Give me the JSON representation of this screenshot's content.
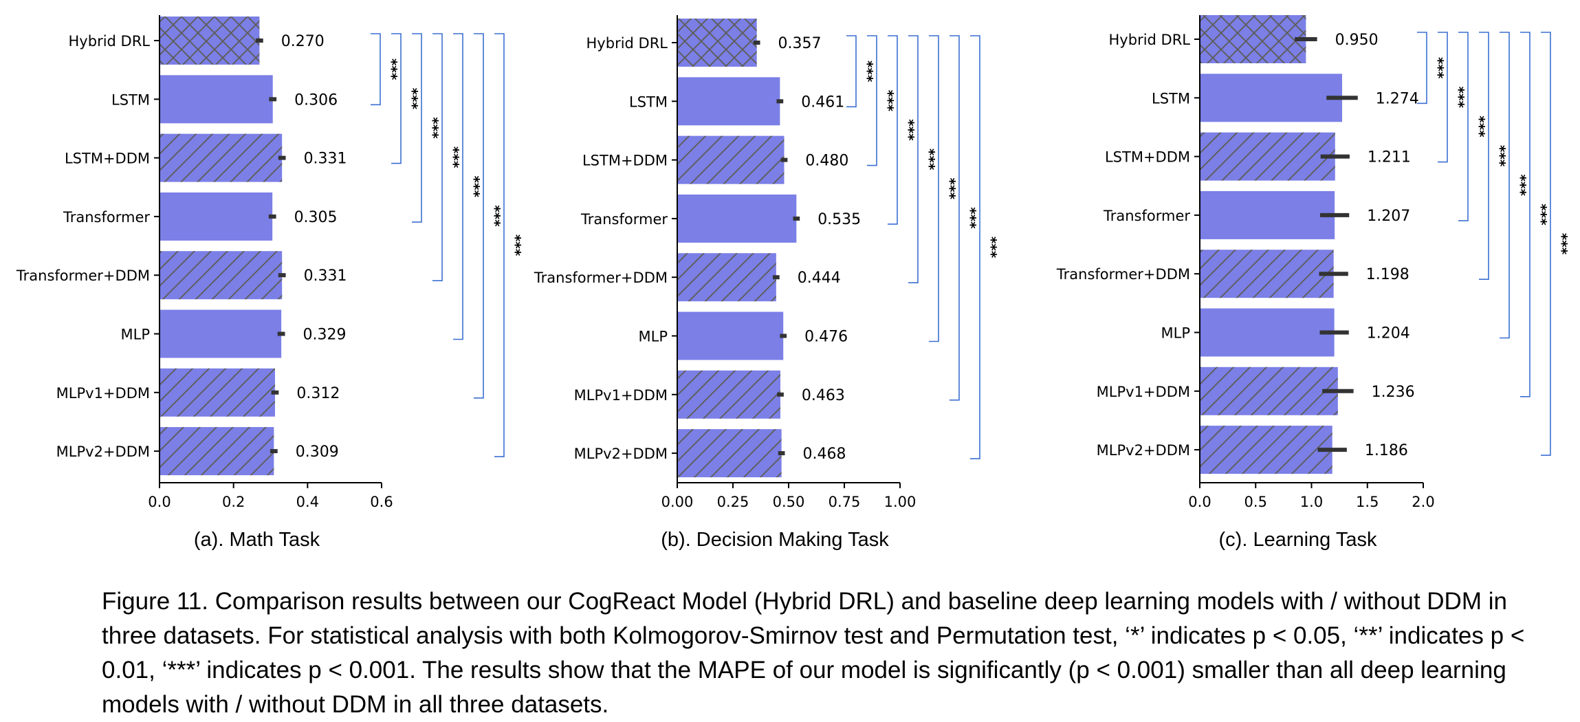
{
  "figure": {
    "caption": "Figure 11. Comparison results between our CogReact Model (Hybrid DRL) and baseline deep learning models with / without DDM in three datasets. For statistical analysis with both Kolmogorov-Smirnov test and Permutation test,  ‘*’ indicates p < 0.05, ‘**’ indicates p < 0.01, ‘***’ indicates p < 0.001. The results show that the MAPE of our model is significantly (p < 0.001) smaller than all deep learning models with / without DDM in all three datasets."
  },
  "colors": {
    "bar": "#7b7fe6",
    "hatch": "#5f5f5f",
    "bracket": "#3b6fd1",
    "errorbar": "#333333"
  },
  "chart_data": [
    {
      "type": "bar",
      "orientation": "horizontal",
      "subtitle": "(a). Math Task",
      "categories": [
        "Hybrid DRL",
        "LSTM",
        "LSTM+DDM",
        "Transformer",
        "Transformer+DDM",
        "MLP",
        "MLPv1+DDM",
        "MLPv2+DDM"
      ],
      "values": [
        0.27,
        0.306,
        0.331,
        0.305,
        0.331,
        0.329,
        0.312,
        0.309
      ],
      "value_labels": [
        "0.270",
        "0.306",
        "0.331",
        "0.305",
        "0.331",
        "0.329",
        "0.312",
        "0.309"
      ],
      "errors": [
        0.01,
        0.01,
        0.01,
        0.01,
        0.01,
        0.01,
        0.01,
        0.01
      ],
      "hatch": [
        "cross",
        "none",
        "diag",
        "none",
        "diag",
        "none",
        "diag",
        "diag"
      ],
      "xlim": [
        0,
        0.6
      ],
      "xticks": [
        "0.0",
        "0.2",
        "0.4",
        "0.6"
      ],
      "xtick_values": [
        0,
        0.2,
        0.4,
        0.6
      ],
      "significance": [
        {
          "from": 0,
          "to": 1,
          "label": "***"
        },
        {
          "from": 0,
          "to": 2,
          "label": "***"
        },
        {
          "from": 0,
          "to": 3,
          "label": "***"
        },
        {
          "from": 0,
          "to": 4,
          "label": "***"
        },
        {
          "from": 0,
          "to": 5,
          "label": "***"
        },
        {
          "from": 0,
          "to": 6,
          "label": "***"
        },
        {
          "from": 0,
          "to": 7,
          "label": "***"
        }
      ]
    },
    {
      "type": "bar",
      "orientation": "horizontal",
      "subtitle": "(b). Decision Making Task",
      "categories": [
        "Hybrid DRL",
        "LSTM",
        "LSTM+DDM",
        "Transformer",
        "Transformer+DDM",
        "MLP",
        "MLPv1+DDM",
        "MLPv2+DDM"
      ],
      "values": [
        0.357,
        0.461,
        0.48,
        0.535,
        0.444,
        0.476,
        0.463,
        0.468
      ],
      "value_labels": [
        "0.357",
        "0.461",
        "0.480",
        "0.535",
        "0.444",
        "0.476",
        "0.463",
        "0.468"
      ],
      "errors": [
        0.015,
        0.015,
        0.015,
        0.015,
        0.015,
        0.015,
        0.015,
        0.015
      ],
      "hatch": [
        "cross",
        "none",
        "diag",
        "none",
        "diag",
        "none",
        "diag",
        "diag"
      ],
      "xlim": [
        0,
        1.0
      ],
      "xticks": [
        "0.00",
        "0.25",
        "0.50",
        "0.75",
        "1.00"
      ],
      "xtick_values": [
        0,
        0.25,
        0.5,
        0.75,
        1.0
      ],
      "significance": [
        {
          "from": 0,
          "to": 1,
          "label": "***"
        },
        {
          "from": 0,
          "to": 2,
          "label": "***"
        },
        {
          "from": 0,
          "to": 3,
          "label": "***"
        },
        {
          "from": 0,
          "to": 4,
          "label": "***"
        },
        {
          "from": 0,
          "to": 5,
          "label": "***"
        },
        {
          "from": 0,
          "to": 6,
          "label": "***"
        },
        {
          "from": 0,
          "to": 7,
          "label": "***"
        }
      ]
    },
    {
      "type": "bar",
      "orientation": "horizontal",
      "subtitle": "(c). Learning Task",
      "categories": [
        "Hybrid DRL",
        "LSTM",
        "LSTM+DDM",
        "Transformer",
        "Transformer+DDM",
        "MLP",
        "MLPv1+DDM",
        "MLPv2+DDM"
      ],
      "values": [
        0.95,
        1.274,
        1.211,
        1.207,
        1.198,
        1.204,
        1.236,
        1.186
      ],
      "value_labels": [
        "0.950",
        "1.274",
        "1.211",
        "1.207",
        "1.198",
        "1.204",
        "1.236",
        "1.186"
      ],
      "errors": [
        0.1,
        0.14,
        0.13,
        0.13,
        0.13,
        0.13,
        0.14,
        0.13
      ],
      "hatch": [
        "cross",
        "none",
        "diag",
        "none",
        "diag",
        "none",
        "diag",
        "diag"
      ],
      "xlim": [
        0,
        2.0
      ],
      "xticks": [
        "0.0",
        "0.5",
        "1.0",
        "1.5",
        "2.0"
      ],
      "xtick_values": [
        0,
        0.5,
        1.0,
        1.5,
        2.0
      ],
      "significance": [
        {
          "from": 0,
          "to": 1,
          "label": "***"
        },
        {
          "from": 0,
          "to": 2,
          "label": "***"
        },
        {
          "from": 0,
          "to": 3,
          "label": "***"
        },
        {
          "from": 0,
          "to": 4,
          "label": "***"
        },
        {
          "from": 0,
          "to": 5,
          "label": "***"
        },
        {
          "from": 0,
          "to": 6,
          "label": "***"
        },
        {
          "from": 0,
          "to": 7,
          "label": "***"
        }
      ]
    }
  ]
}
